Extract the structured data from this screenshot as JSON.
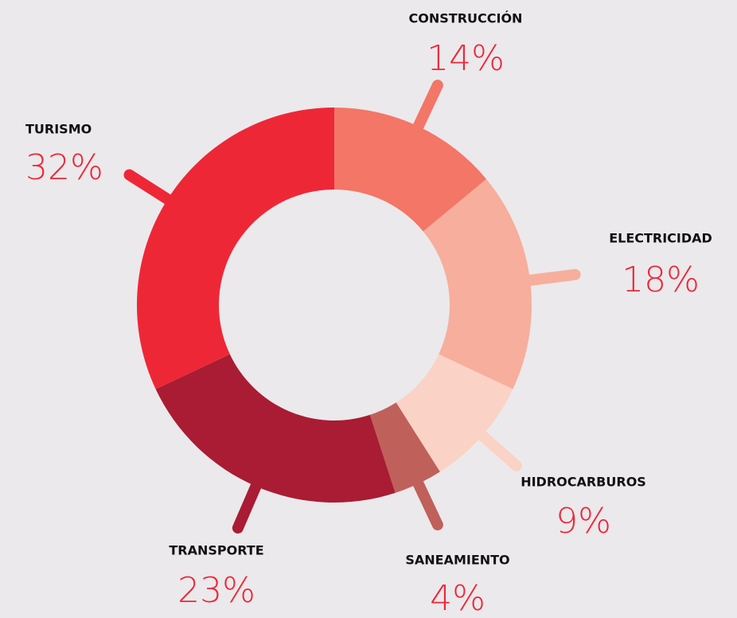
{
  "chart_data": {
    "type": "donut",
    "categories": [
      "CONSTRUCCIÓN",
      "ELECTRICIDAD",
      "HIDROCARBUROS",
      "SANEAMIENTO",
      "TRANSPORTE",
      "TURISMO"
    ],
    "values": [
      14,
      18,
      9,
      4,
      23,
      32
    ],
    "value_labels": [
      "14%",
      "18%",
      "9%",
      "4%",
      "23%",
      "32%"
    ],
    "colors": [
      "#f37667",
      "#f7ae9c",
      "#fbd2c6",
      "#c0605a",
      "#a91c33",
      "#ee2737"
    ]
  }
}
